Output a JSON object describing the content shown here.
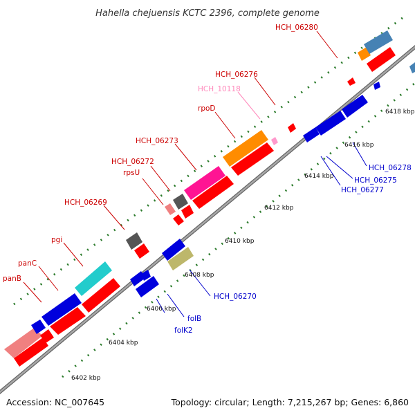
{
  "title": "Hahella chejuensis KCTC 2396, complete genome",
  "footer": {
    "accession": "Accession: NC_007645",
    "summary": "Topology: circular; Length: 7,215,267 bp; Genes: 6,860"
  },
  "colors": {
    "backbone": "#888888",
    "tick_dots": "#2a7a2a",
    "forward_label": "#cc0000",
    "reverse_label": "#0000cc",
    "cds_red": "#ff0000",
    "cds_blue": "#0000dd"
  },
  "tick_labels": [
    "6402 kbp",
    "6404 kbp",
    "6406 kbp",
    "6408 kbp",
    "6410 kbp",
    "6412 kbp",
    "6414 kbp",
    "6416 kbp",
    "6418 kbp"
  ],
  "gene_labels": {
    "forward": [
      "panB",
      "panC",
      "pgi",
      "HCH_06269",
      "rpsU",
      "HCH_06272",
      "HCH_06273",
      "rpoD",
      "HCH_10118",
      "HCH_06276",
      "HCH_06280"
    ],
    "reverse": [
      "folK2",
      "folB",
      "HCH_06270",
      "HCH_06277",
      "HCH_06275",
      "HCH_06278"
    ]
  }
}
